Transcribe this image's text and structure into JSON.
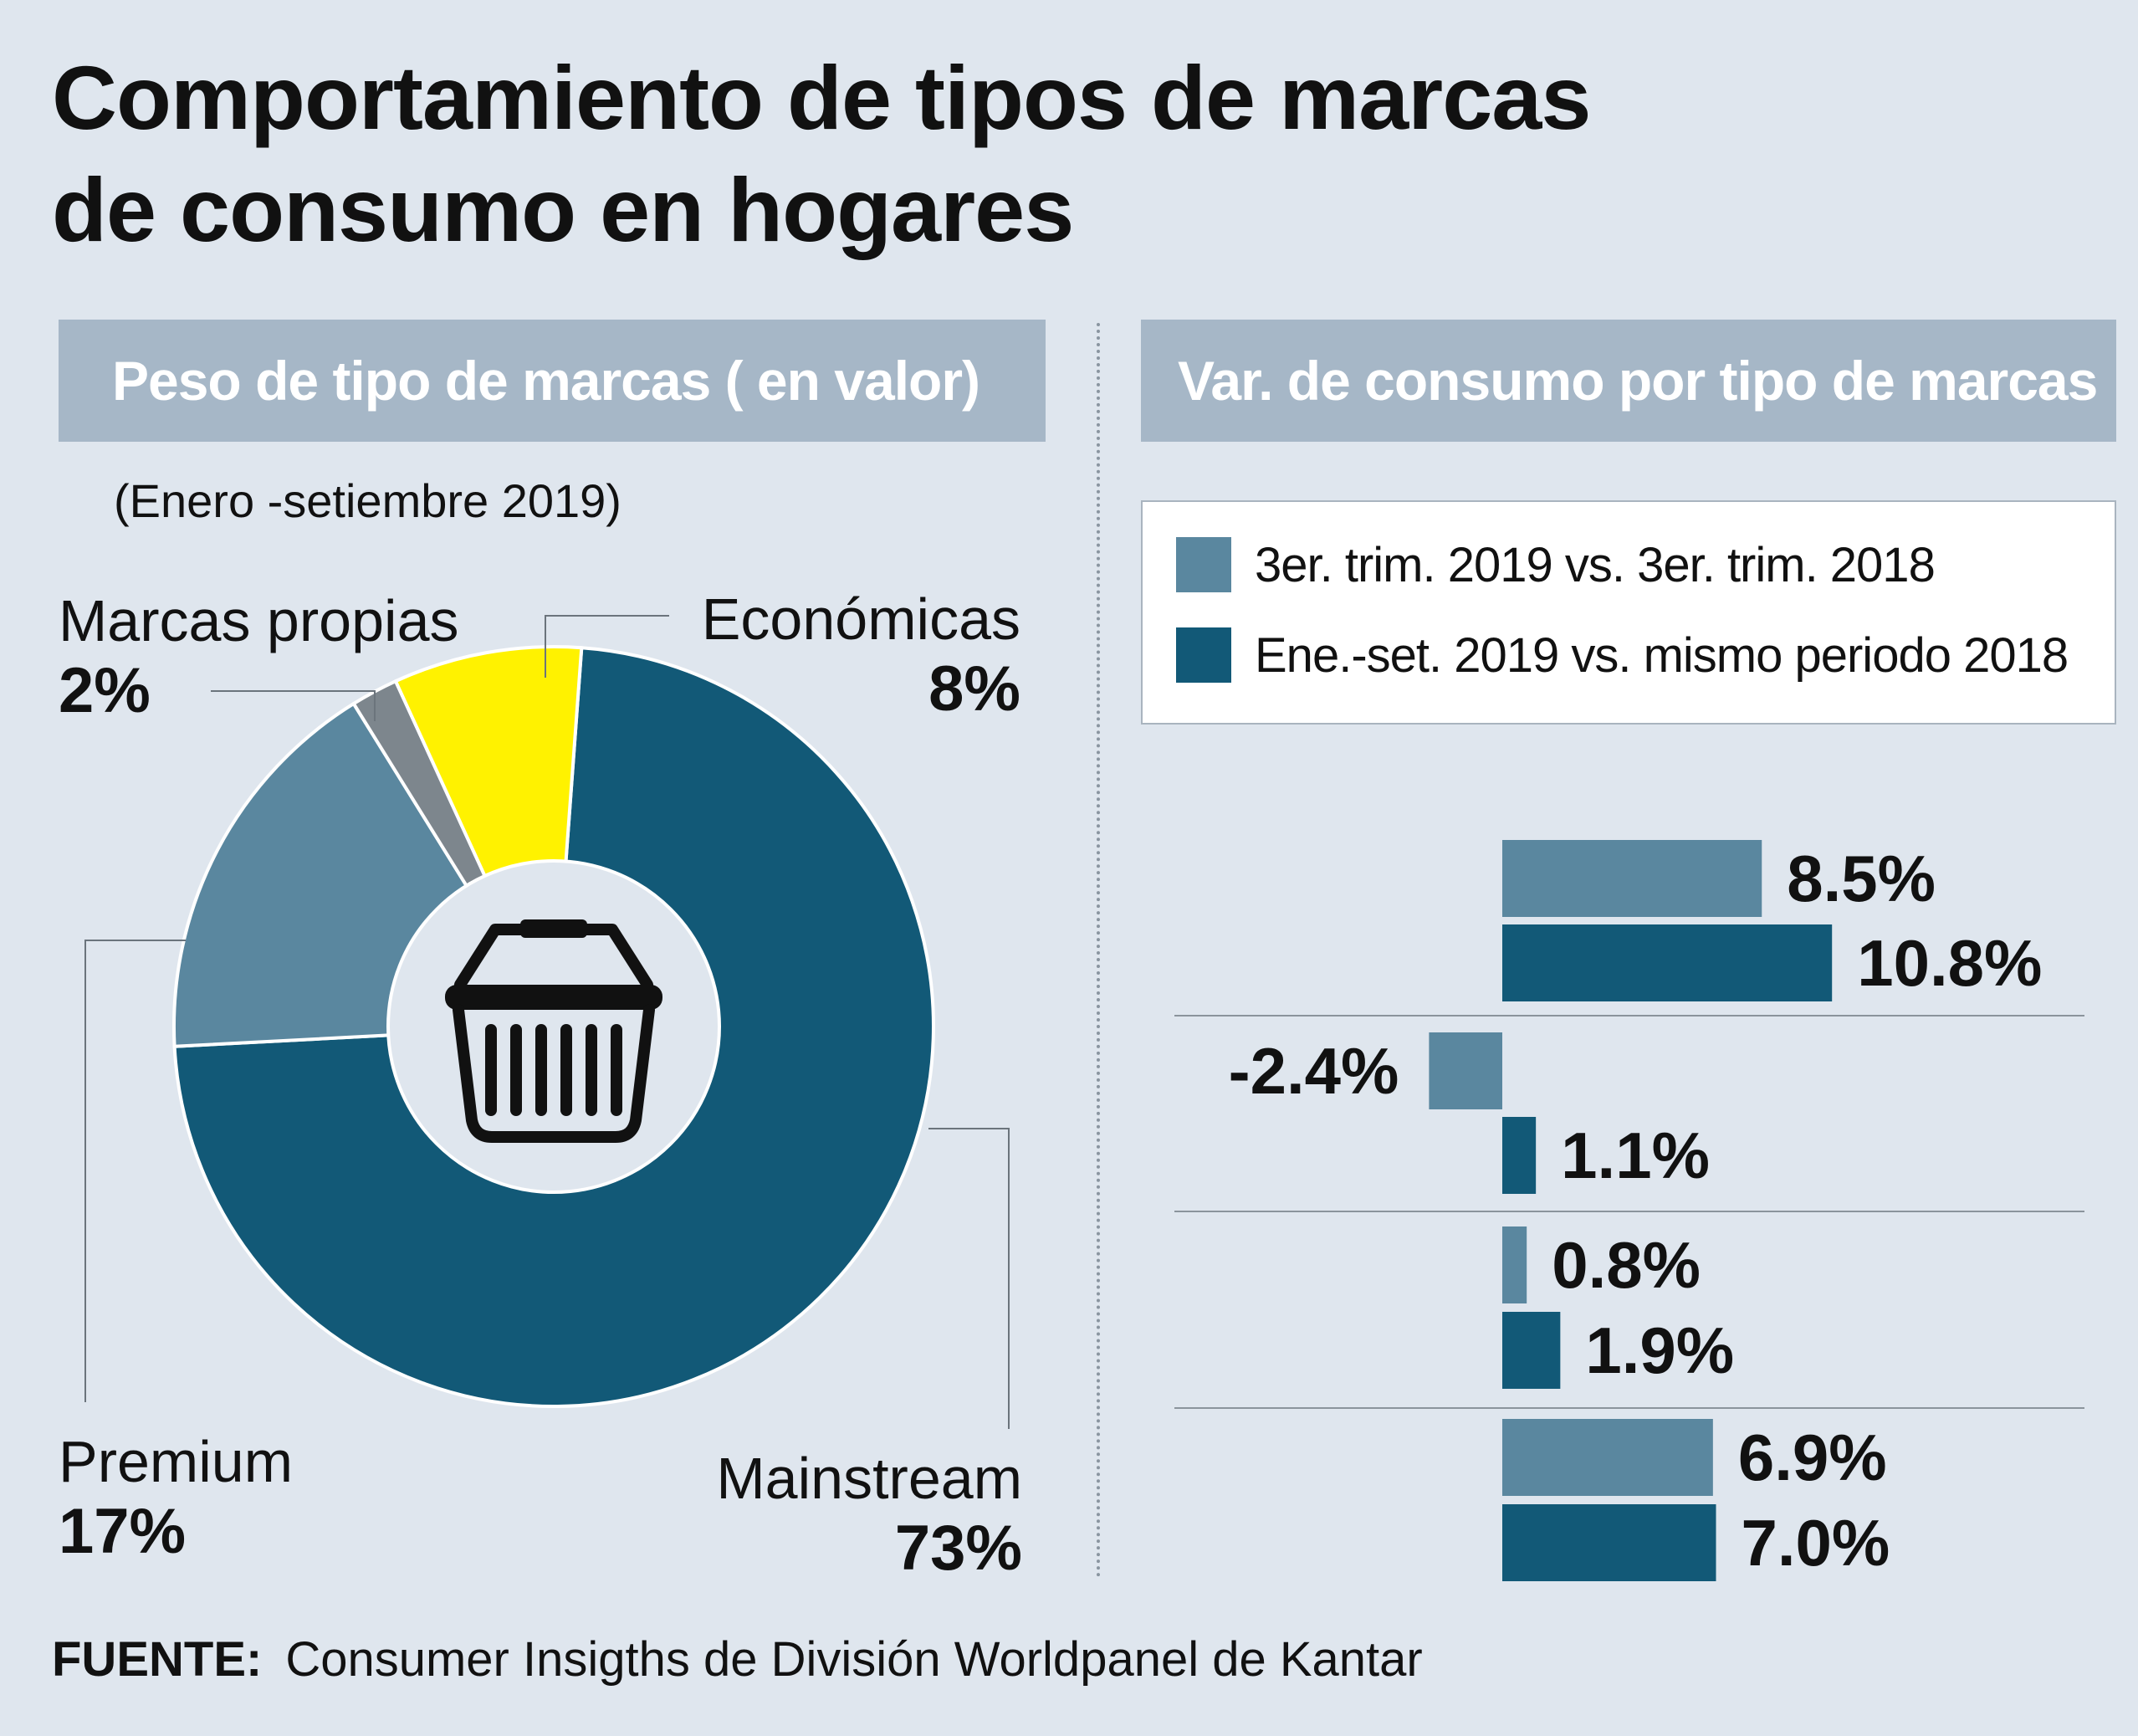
{
  "title": {
    "line1": "Comportamiento de tipos de marcas",
    "line2": "de consumo en hogares"
  },
  "left_panel": {
    "header": "Peso de tipo de marcas ( en valor)",
    "period": "(Enero -setiembre 2019)"
  },
  "right_panel": {
    "header": "Var. de consumo  por tipo de marcas",
    "legend": [
      {
        "label": "3er. trim. 2019 vs. 3er. trim. 2018",
        "color": "#5a879f"
      },
      {
        "label": "Ene.-set. 2019 vs. mismo periodo 2018",
        "color": "#125977"
      }
    ]
  },
  "source": {
    "label": "FUENTE:",
    "text": "Consumer Insigths de División Worldpanel de Kantar"
  },
  "chart_data": [
    {
      "type": "pie",
      "title": "Peso de tipo de marcas ( en valor)",
      "subtitle": "(Enero -setiembre 2019)",
      "center_icon": "shopping-basket-icon",
      "slices": [
        {
          "name": "Mainstream",
          "value": 73,
          "label": "73%",
          "color": "#125977"
        },
        {
          "name": "Premium",
          "value": 17,
          "label": "17%",
          "color": "#5a879f"
        },
        {
          "name": "Marcas propias",
          "value": 2,
          "label": "2%",
          "color": "#7d868d"
        },
        {
          "name": "Económicas",
          "value": 8,
          "label": "8%",
          "color": "#fff200"
        }
      ]
    },
    {
      "type": "bar",
      "orientation": "horizontal",
      "title": "Var. de consumo  por tipo de marcas",
      "categories": [
        "",
        "",
        "",
        ""
      ],
      "series": [
        {
          "name": "3er. trim. 2019 vs. 3er. trim. 2018",
          "color": "#5a879f",
          "values": [
            8.5,
            -2.4,
            0.8,
            6.9
          ],
          "labels": [
            "8.5%",
            "-2.4%",
            "0.8%",
            "6.9%"
          ]
        },
        {
          "name": "Ene.-set. 2019 vs. mismo periodo 2018",
          "color": "#125977",
          "values": [
            10.8,
            1.1,
            1.9,
            7.0
          ],
          "labels": [
            "10.8%",
            "1.1%",
            "1.9%",
            "7.0%"
          ]
        }
      ],
      "xlim": [
        -2.4,
        10.8
      ]
    }
  ]
}
